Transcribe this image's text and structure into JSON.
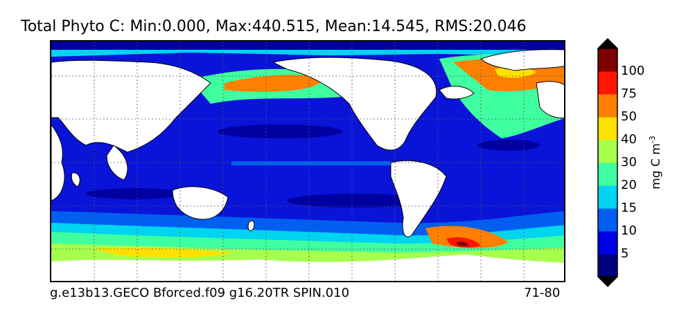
{
  "title": "Total Phyto C: Min:0.000, Max:440.515, Mean:14.545, RMS:20.046",
  "footer": {
    "left": "g.e13b13.GECO Bforced.f09 g16.20TR SPIN.010",
    "right": "71-80"
  },
  "colorbar": {
    "unit_base": "mg C m",
    "unit_exponent": "-3",
    "tick_labels": [
      "100",
      "75",
      "50",
      "40",
      "30",
      "20",
      "15",
      "10",
      "5"
    ],
    "colors": [
      "#000080",
      "#0000e6",
      "#005ff0",
      "#00d4f0",
      "#40ffa0",
      "#a6ff4c",
      "#ffe100",
      "#ff7f00",
      "#ff1500",
      "#7f0000"
    ]
  },
  "map_colors": {
    "land": "#ffffff",
    "ocean_low": "#0a14d8",
    "ocean_vlow": "#0000a0",
    "band_10": "#005ff0",
    "band_15": "#00d4f0",
    "band_20": "#40ffa0",
    "band_30": "#a6ff4c",
    "band_40": "#ffe100",
    "band_50": "#ff7f00",
    "band_75": "#ff1500",
    "band_100": "#7f0000"
  }
}
